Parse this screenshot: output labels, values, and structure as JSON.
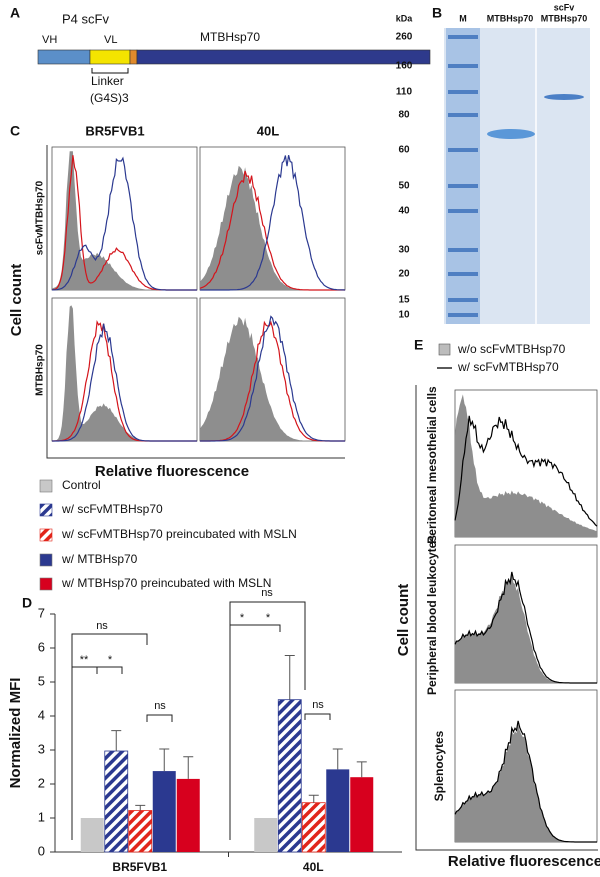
{
  "panel_a": {
    "label": "A",
    "construct": "P4 scFv",
    "vh": "VH",
    "vl": "VL",
    "protein": "MTBHsp70",
    "linker": "Linker",
    "linker_seq": "(G4S)3"
  },
  "panel_b": {
    "label": "B",
    "unit": "kDa",
    "lanes": [
      "M",
      "MTBHsp70",
      "scFv",
      "MTBHsp70"
    ],
    "markers": [
      "260",
      "160",
      "110",
      "80",
      "60",
      "50",
      "40",
      "30",
      "20",
      "15",
      "10"
    ]
  },
  "panel_c": {
    "label": "C",
    "columns": [
      "BR5FVB1",
      "40L"
    ],
    "rows": [
      "scFvMTBHsp70",
      "MTBHsp70"
    ],
    "y_label": "Cell count",
    "x_label": "Relative fluorescence"
  },
  "panel_e": {
    "label": "E",
    "legend": [
      "w/o scFvMTBHsp70",
      "w/ scFvMTBHsp70"
    ],
    "rows": [
      "Peritoneal mesothelial cells",
      "Peripheral blood leukocytes",
      "Splenocytes"
    ],
    "y_label": "Cell count",
    "x_label": "Relative fluorescence"
  },
  "chart_data": {
    "type": "bar",
    "panel_label": "D",
    "y_label": "Normalized MFI",
    "categories": [
      "BR5FVB1",
      "40L"
    ],
    "ylim": [
      0,
      7
    ],
    "yticks": [
      0,
      1,
      2,
      3,
      4,
      5,
      6,
      7
    ],
    "series": [
      {
        "name": "Control",
        "color": "#c8c8c8",
        "hatch": false,
        "values": [
          1,
          1
        ],
        "errors": [
          null,
          null
        ]
      },
      {
        "name": "w/ scFvMTBHsp70",
        "color": "#2b3990",
        "hatch": true,
        "values": [
          2.97,
          4.48
        ],
        "errors": [
          0.6,
          1.3
        ]
      },
      {
        "name": "w/ scFvMTBHsp70 preincubated with MSLN",
        "color": "#e1251b",
        "hatch": true,
        "values": [
          1.22,
          1.45
        ],
        "errors": [
          0.15,
          0.22
        ]
      },
      {
        "name": "w/ MTBHsp70",
        "color": "#2b3990",
        "hatch": false,
        "values": [
          2.38,
          2.43
        ],
        "errors": [
          0.65,
          0.6
        ]
      },
      {
        "name": "w/ MTBHsp70 preincubated with MSLN",
        "color": "#d7001e",
        "hatch": false,
        "values": [
          2.15,
          2.2
        ],
        "errors": [
          0.65,
          0.45
        ]
      }
    ],
    "annotations": [
      "ns",
      "**",
      "*",
      "ns",
      "ns",
      "*",
      "*",
      "ns"
    ]
  }
}
